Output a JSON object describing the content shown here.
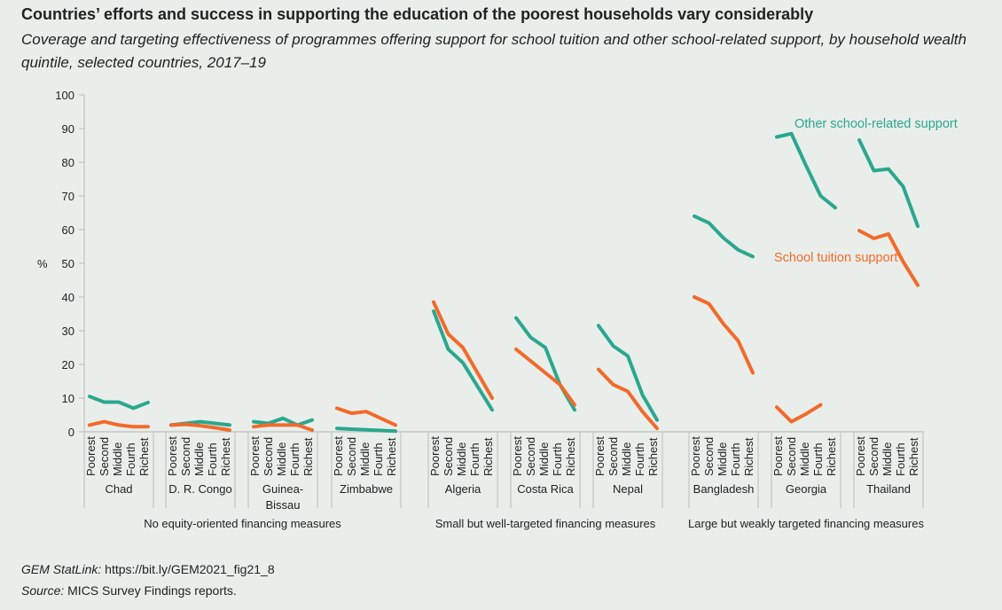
{
  "title": "Countries’ efforts and success in supporting the education of the poorest households vary considerably",
  "subtitle": "Coverage and targeting effectiveness of programmes offering support for school tuition and other school-related support, by household wealth quintile, selected countries, 2017–19",
  "footer": {
    "statlink_label": "GEM StatLink:",
    "statlink_url": "https://bit.ly/GEM2021_fig21_8",
    "source_label": "Source:",
    "source_text": "MICS Survey Findings reports."
  },
  "chart_data": {
    "type": "line",
    "ylabel": "%",
    "ylim": [
      0,
      100
    ],
    "yticks": [
      0,
      10,
      20,
      30,
      40,
      50,
      60,
      70,
      80,
      90,
      100
    ],
    "quintiles": [
      "Poorest",
      "Second",
      "Middle",
      "Fourth",
      "Richest"
    ],
    "colors": {
      "other": "#2aa78f",
      "tuition": "#f26a2a"
    },
    "series_names": {
      "other": "Other school-related support",
      "tuition": "School tuition support"
    },
    "groups": [
      {
        "label": "No equity-oriented financing measures",
        "countries": [
          {
            "name": "Chad",
            "other": [
              10.5,
              8.8,
              8.8,
              7,
              8.7
            ],
            "tuition": [
              2,
              3,
              2,
              1.5,
              1.5
            ]
          },
          {
            "name": "D. R. Congo",
            "other": [
              2,
              2.5,
              3,
              2.5,
              2
            ],
            "tuition": [
              2,
              2.2,
              1.8,
              1.2,
              0.5
            ]
          },
          {
            "name": "Guinea-Bissau",
            "other": [
              3,
              2.5,
              4,
              2,
              3.5
            ],
            "tuition": [
              1.5,
              2,
              2,
              2,
              0.5
            ]
          },
          {
            "name": "Zimbabwe",
            "other": [
              1,
              0.8,
              0.6,
              0.4,
              0.2
            ],
            "tuition": [
              7,
              5.5,
              6,
              4,
              2
            ]
          }
        ]
      },
      {
        "label": "Small but well-targeted financing measures",
        "countries": [
          {
            "name": "Algeria",
            "other": [
              35.8,
              24.5,
              20.5,
              13.5,
              6.5
            ],
            "tuition": [
              38.5,
              29,
              25,
              17.5,
              10
            ]
          },
          {
            "name": "Costa Rica",
            "other": [
              33.8,
              28,
              25,
              14,
              6.5
            ],
            "tuition": [
              24.5,
              21,
              17.5,
              14,
              8
            ]
          },
          {
            "name": "Nepal",
            "other": [
              31.5,
              25.5,
              22.5,
              11,
              3.5
            ],
            "tuition": [
              18.5,
              14,
              12,
              6,
              1
            ]
          }
        ]
      },
      {
        "label": "Large but weakly targeted financing measures",
        "countries": [
          {
            "name": "Bangladesh",
            "other": [
              64,
              62,
              57.5,
              54,
              52
            ],
            "tuition": [
              40,
              38,
              32,
              27,
              17.5
            ]
          },
          {
            "name": "Georgia",
            "other": [
              87.5,
              88.5,
              79,
              70,
              66.5
            ],
            "tuition": [
              7.3,
              3,
              5.3,
              8,
              null
            ]
          },
          {
            "name": "Thailand",
            "other": [
              86.6,
              77.5,
              78,
              72.8,
              61
            ],
            "tuition": [
              59.7,
              57.4,
              58.7,
              50.5,
              43.5
            ]
          }
        ]
      }
    ]
  }
}
